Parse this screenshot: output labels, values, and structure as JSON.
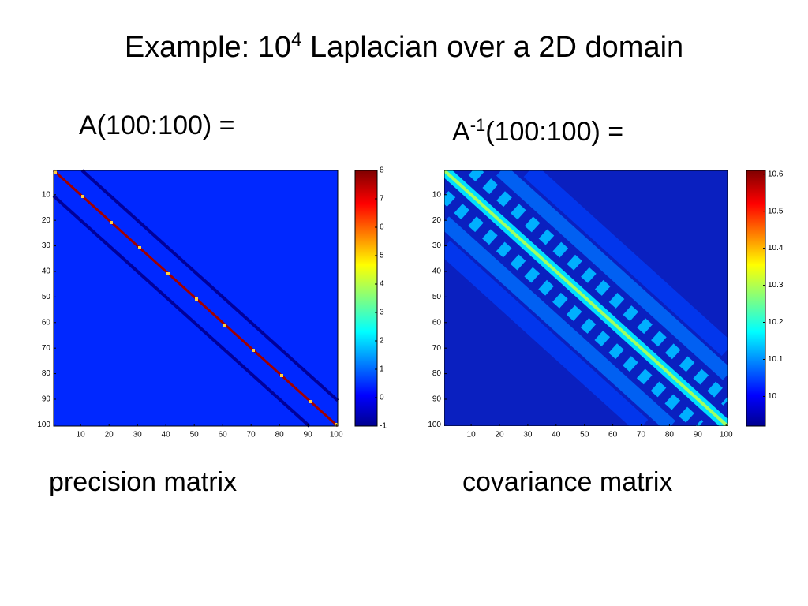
{
  "title": {
    "text": "Example: 10",
    "sup": "4",
    "rest": " Laplacian over a 2D domain"
  },
  "panels": [
    {
      "heading": "A(100:100) =",
      "caption": "precision matrix"
    },
    {
      "heading": {
        "base": "A",
        "sup": "-1",
        "rest": "(100:100) ="
      },
      "caption": "covariance matrix"
    }
  ],
  "chart_data": [
    {
      "type": "heatmap",
      "xlim": [
        0.5,
        100.5
      ],
      "ylim": [
        0.5,
        100.5
      ],
      "xticks": [
        10,
        20,
        30,
        40,
        50,
        60,
        70,
        80,
        90,
        100
      ],
      "yticks": [
        10,
        20,
        30,
        40,
        50,
        60,
        70,
        80,
        90,
        100
      ],
      "clim": [
        -1,
        8
      ],
      "cticks": [
        -1,
        0,
        1,
        2,
        3,
        4,
        5,
        6,
        7,
        8
      ]
    },
    {
      "type": "heatmap",
      "xlim": [
        0.5,
        100.5
      ],
      "ylim": [
        0.5,
        100.5
      ],
      "xticks": [
        10,
        20,
        30,
        40,
        50,
        60,
        70,
        80,
        90,
        100
      ],
      "yticks": [
        10,
        20,
        30,
        40,
        50,
        60,
        70,
        80,
        90,
        100
      ],
      "clim": [
        9.92,
        10.61
      ],
      "cticks": [
        10,
        10.1,
        10.2,
        10.3,
        10.4,
        10.5,
        10.6
      ]
    }
  ]
}
